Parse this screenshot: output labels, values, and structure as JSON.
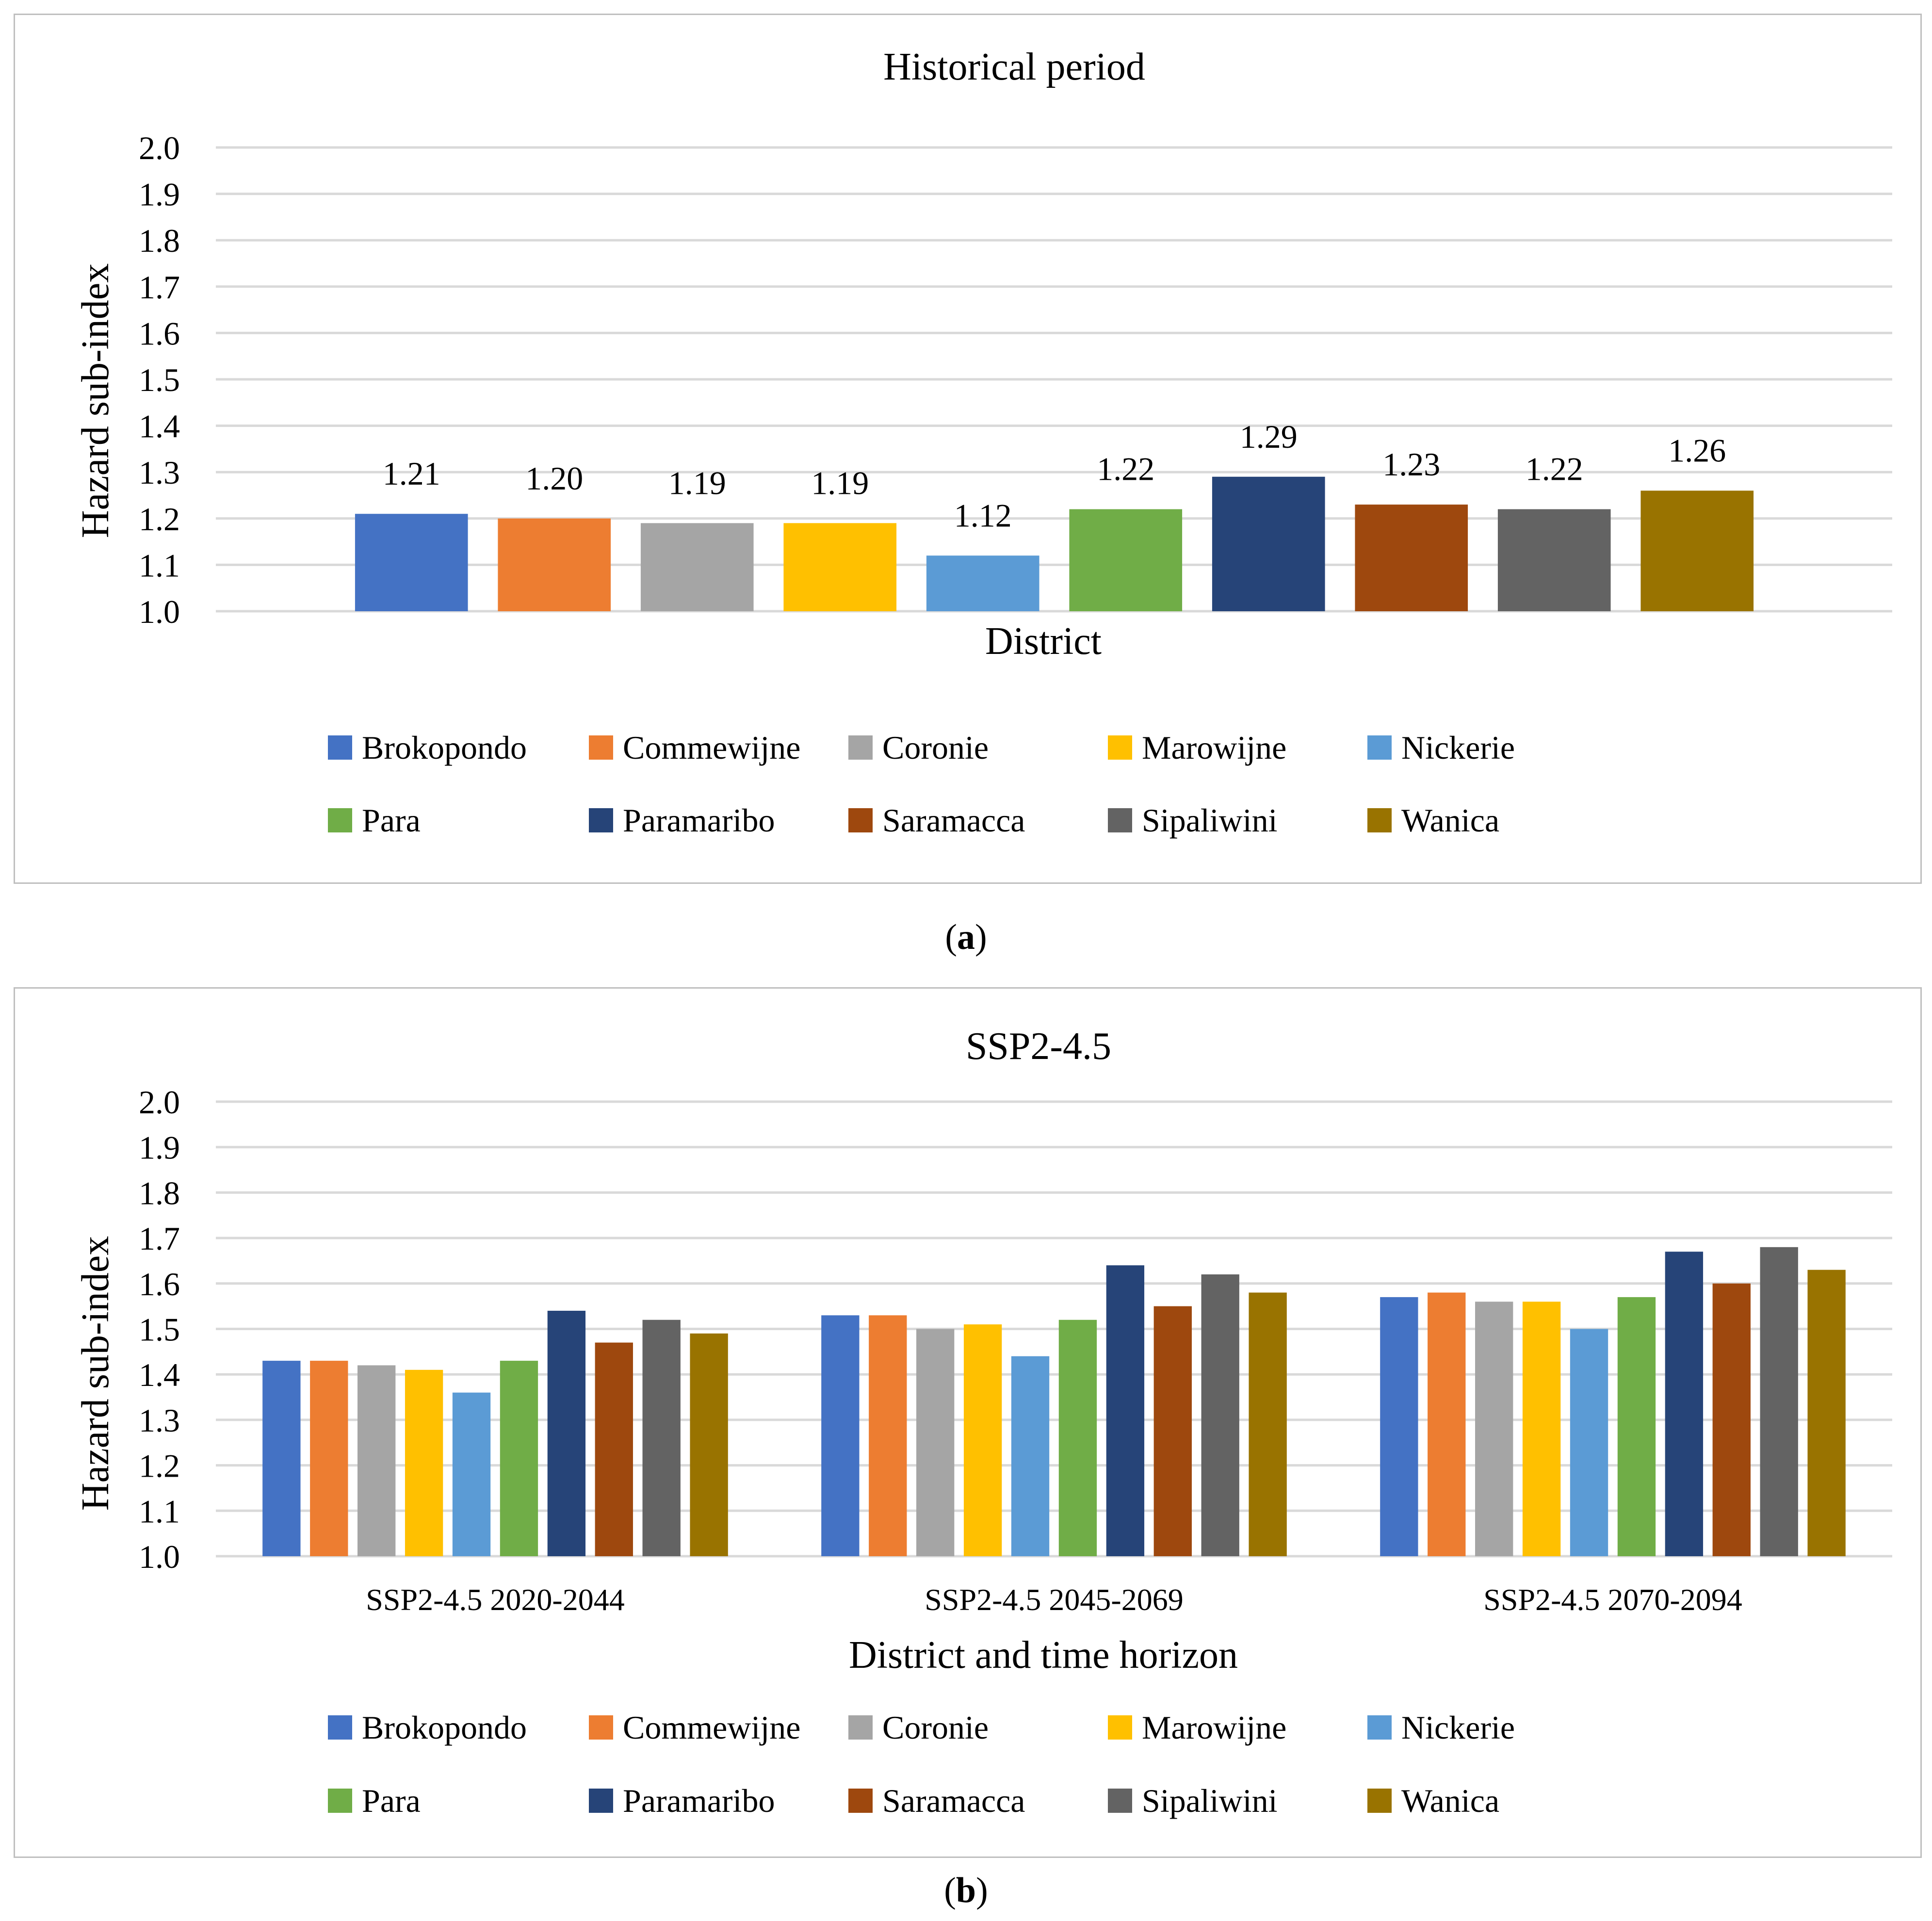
{
  "colors": {
    "Brokopondo": "#4472C4",
    "Commewijne": "#ED7D31",
    "Coronie": "#A5A5A5",
    "Marowijne": "#FFC000",
    "Nickerie": "#5B9BD5",
    "Para": "#70AD47",
    "Paramaribo": "#264478",
    "Saramacca": "#9E480E",
    "Sipaliwini": "#636363",
    "Wanica": "#997300",
    "grid": "#d9d9d9"
  },
  "caption_a": {
    "open": "(",
    "letter": "a",
    "close": ")"
  },
  "caption_b": {
    "open": "(",
    "letter": "b",
    "close": ")"
  },
  "chart_data": [
    {
      "type": "bar",
      "title": "Historical period",
      "xlabel": "District",
      "ylabel": "Hazard sub-index",
      "ylim": [
        1.0,
        2.0
      ],
      "yticks": [
        "1.0",
        "1.1",
        "1.2",
        "1.3",
        "1.4",
        "1.5",
        "1.6",
        "1.7",
        "1.8",
        "1.9",
        "2.0"
      ],
      "grid": true,
      "legend_position": "bottom",
      "categories": [
        ""
      ],
      "series": [
        {
          "name": "Brokopondo",
          "values": [
            1.21
          ],
          "labels": [
            "1.21"
          ]
        },
        {
          "name": "Commewijne",
          "values": [
            1.2
          ],
          "labels": [
            "1.20"
          ]
        },
        {
          "name": "Coronie",
          "values": [
            1.19
          ],
          "labels": [
            "1.19"
          ]
        },
        {
          "name": "Marowijne",
          "values": [
            1.19
          ],
          "labels": [
            "1.19"
          ]
        },
        {
          "name": "Nickerie",
          "values": [
            1.12
          ],
          "labels": [
            "1.12"
          ]
        },
        {
          "name": "Para",
          "values": [
            1.22
          ],
          "labels": [
            "1.22"
          ]
        },
        {
          "name": "Paramaribo",
          "values": [
            1.29
          ],
          "labels": [
            "1.29"
          ]
        },
        {
          "name": "Saramacca",
          "values": [
            1.23
          ],
          "labels": [
            "1.23"
          ]
        },
        {
          "name": "Sipaliwini",
          "values": [
            1.22
          ],
          "labels": [
            "1.22"
          ]
        },
        {
          "name": "Wanica",
          "values": [
            1.26
          ],
          "labels": [
            "1.26"
          ]
        }
      ]
    },
    {
      "type": "bar",
      "title": "SSP2-4.5",
      "xlabel": "District and time horizon",
      "ylabel": "Hazard sub-index",
      "ylim": [
        1.0,
        2.0
      ],
      "yticks": [
        "1.0",
        "1.1",
        "1.2",
        "1.3",
        "1.4",
        "1.5",
        "1.6",
        "1.7",
        "1.8",
        "1.9",
        "2.0"
      ],
      "grid": true,
      "legend_position": "bottom",
      "categories": [
        "SSP2-4.5 2020-2044",
        "SSP2-4.5 2045-2069",
        "SSP2-4.5 2070-2094"
      ],
      "series": [
        {
          "name": "Brokopondo",
          "values": [
            1.43,
            1.53,
            1.57
          ]
        },
        {
          "name": "Commewijne",
          "values": [
            1.43,
            1.53,
            1.58
          ]
        },
        {
          "name": "Coronie",
          "values": [
            1.42,
            1.5,
            1.56
          ]
        },
        {
          "name": "Marowijne",
          "values": [
            1.41,
            1.51,
            1.56
          ]
        },
        {
          "name": "Nickerie",
          "values": [
            1.36,
            1.44,
            1.5
          ]
        },
        {
          "name": "Para",
          "values": [
            1.43,
            1.52,
            1.57
          ]
        },
        {
          "name": "Paramaribo",
          "values": [
            1.54,
            1.64,
            1.67
          ]
        },
        {
          "name": "Saramacca",
          "values": [
            1.47,
            1.55,
            1.6
          ]
        },
        {
          "name": "Sipaliwini",
          "values": [
            1.52,
            1.62,
            1.68
          ]
        },
        {
          "name": "Wanica",
          "values": [
            1.49,
            1.58,
            1.63
          ]
        }
      ]
    }
  ]
}
